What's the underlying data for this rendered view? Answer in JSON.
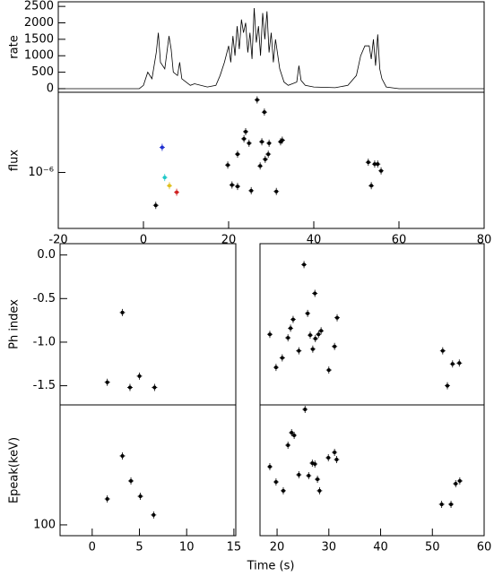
{
  "figure": {
    "xlabel": "Time (s)"
  },
  "chart_data": [
    {
      "type": "line",
      "ylabel": "rate",
      "color": "#000000",
      "x": [
        -20,
        -1,
        0,
        1,
        2,
        3,
        3.5,
        4,
        5,
        6,
        6.5,
        7,
        8,
        8.5,
        9,
        10,
        11,
        12,
        15,
        17,
        18,
        19,
        20,
        20.5,
        21,
        21.5,
        22,
        22.5,
        23,
        23.5,
        24,
        24.5,
        25,
        25.5,
        26,
        26.5,
        27,
        27.5,
        28,
        28.5,
        29,
        29.5,
        30,
        30.5,
        31,
        32,
        33,
        34,
        36,
        36.5,
        37,
        38,
        40,
        45,
        48,
        50,
        51,
        52,
        53,
        53.5,
        54,
        54.5,
        55,
        55.5,
        56,
        57,
        60,
        80
      ],
      "values": [
        0,
        0,
        100,
        500,
        300,
        1100,
        1700,
        800,
        600,
        1600,
        1200,
        500,
        400,
        800,
        300,
        200,
        100,
        150,
        50,
        100,
        400,
        800,
        1300,
        800,
        1600,
        1000,
        1900,
        1200,
        2100,
        1700,
        2000,
        1100,
        1700,
        900,
        2450,
        1400,
        1900,
        1000,
        2300,
        1500,
        2350,
        1100,
        1700,
        800,
        1500,
        600,
        200,
        100,
        200,
        700,
        250,
        100,
        50,
        30,
        100,
        400,
        1000,
        1300,
        1300,
        900,
        1500,
        700,
        1650,
        600,
        300,
        50,
        0,
        0
      ],
      "xlim": [
        -20,
        80
      ],
      "ylim": [
        -110,
        2640
      ],
      "yticks": [
        0,
        500,
        1000,
        1500,
        2000,
        2500
      ]
    },
    {
      "type": "scatter",
      "ylabel": "flux",
      "ylog": true,
      "xlim": [
        -20,
        80
      ],
      "xticks": [
        -20,
        0,
        20,
        40,
        60,
        80
      ],
      "ylim": [
        3.5e-07,
        4.5e-06
      ],
      "yticks": [
        {
          "value": 1e-06,
          "label": "10⁻⁶"
        }
      ],
      "series": [
        {
          "color": "#000000",
          "x": [
            2.9,
            19.8,
            20.8,
            22.1,
            25.3,
            22.1,
            23.6,
            24,
            24.8,
            26.7,
            27.8,
            28.4,
            27.4,
            28.6,
            29.3,
            29.5,
            31.2,
            32.2,
            32.6,
            52.8,
            53.5,
            54.3,
            55,
            55.8
          ],
          "values": [
            5.4e-07,
            1.15e-06,
            7.9e-07,
            7.7e-07,
            7.1e-07,
            1.41e-06,
            1.88e-06,
            2.15e-06,
            1.73e-06,
            3.9e-06,
            1.78e-06,
            3.1e-06,
            1.13e-06,
            1.28e-06,
            1.41e-06,
            1.73e-06,
            7e-07,
            1.78e-06,
            1.83e-06,
            1.21e-06,
            7.8e-07,
            1.17e-06,
            1.17e-06,
            1.03e-06
          ]
        },
        {
          "color": "#1f2fd0",
          "x": [
            4.4
          ],
          "values": [
            1.6e-06
          ]
        },
        {
          "color": "#20c8c8",
          "x": [
            5.0
          ],
          "values": [
            9.1e-07
          ]
        },
        {
          "color": "#e0c020",
          "x": [
            6.1
          ],
          "values": [
            7.8e-07
          ]
        },
        {
          "color": "#d02020",
          "x": [
            7.8
          ],
          "values": [
            6.9e-07
          ]
        }
      ]
    },
    {
      "type": "scatter",
      "ylabel": "Ph index",
      "xlim": [
        -3.4,
        15.2
      ],
      "ylim": [
        -1.72,
        0.13
      ],
      "yticks": [
        {
          "value": 0,
          "label": "0.0"
        },
        -0.5,
        {
          "value": -1,
          "label": "-1.0"
        },
        -1.5
      ],
      "series": [
        {
          "color": "#000000",
          "x": [
            1.6,
            3.2,
            4.0,
            5.0,
            6.6
          ],
          "values": [
            -1.46,
            -0.66,
            -1.52,
            -1.39,
            -1.52
          ]
        }
      ]
    },
    {
      "type": "scatter",
      "xlim": [
        16.7,
        60
      ],
      "ylim": [
        -1.72,
        0.13
      ],
      "series": [
        {
          "color": "#000000",
          "x": [
            18.6,
            19.8,
            21.0,
            22.1,
            22.6,
            23.1,
            24.2,
            25.2,
            25.9,
            26.4,
            26.9,
            27.3,
            27.4,
            28,
            28.5,
            30.0,
            31.1,
            31.6,
            52.0,
            52.9,
            53.9,
            55.2
          ],
          "values": [
            -0.91,
            -1.29,
            -1.18,
            -0.95,
            -0.84,
            -0.74,
            -1.1,
            -0.11,
            -0.67,
            -0.92,
            -1.08,
            -0.44,
            -0.96,
            -0.91,
            -0.87,
            -1.32,
            -1.05,
            -0.72,
            -1.1,
            -1.5,
            -1.25,
            -1.24
          ]
        }
      ]
    },
    {
      "type": "scatter",
      "ylabel": "Epeak(keV)",
      "ylog": true,
      "xlim": [
        -3.4,
        15.2
      ],
      "xticks": [
        0,
        5,
        10,
        15
      ],
      "ylim": [
        82,
        906
      ],
      "yticks": [
        100
      ],
      "series": [
        {
          "color": "#000000",
          "x": [
            1.6,
            3.2,
            4.1,
            5.1,
            6.5
          ],
          "values": [
            161,
            355,
            224,
            169,
            120
          ]
        }
      ]
    },
    {
      "type": "scatter",
      "ylog": true,
      "xlim": [
        16.7,
        60
      ],
      "xticks": [
        20,
        30,
        40,
        50,
        60
      ],
      "ylim": [
        82,
        906
      ],
      "series": [
        {
          "color": "#000000",
          "x": [
            18.6,
            19.8,
            21.2,
            22.1,
            22.8,
            23.3,
            24.2,
            25.4,
            26.1,
            26.8,
            27.3,
            27.8,
            28.2,
            29.9,
            31.1,
            31.5,
            51.8,
            53.6,
            54.5,
            55.3
          ],
          "values": [
            291,
            220,
            187,
            432,
            544,
            518,
            251,
            834,
            247,
            311,
            306,
            231,
            187,
            343,
            379,
            332,
            146,
            146,
            213,
            224
          ]
        }
      ]
    }
  ]
}
